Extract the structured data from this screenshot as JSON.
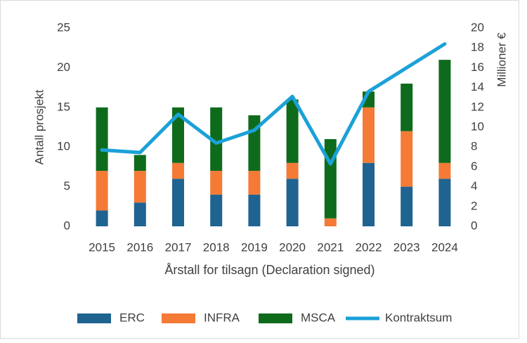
{
  "chart_data": {
    "type": "bar",
    "x_label": "Årstall for tilsagn (Declaration signed)",
    "y_label": "Antall prosjekt",
    "y2_label": "Millioner €",
    "categories": [
      "2015",
      "2016",
      "2017",
      "2018",
      "2019",
      "2020",
      "2021",
      "2022",
      "2023",
      "2024"
    ],
    "series": [
      {
        "name": "ERC",
        "color": "#1f6391",
        "values": [
          2,
          3,
          6,
          4,
          4,
          6,
          0,
          8,
          5,
          6
        ]
      },
      {
        "name": "INFRA",
        "color": "#f47a36",
        "values": [
          5,
          4,
          2,
          3,
          3,
          2,
          1,
          7,
          7,
          2
        ]
      },
      {
        "name": "MSCA",
        "color": "#0e6b1c",
        "values": [
          8,
          2,
          7,
          8,
          7,
          8,
          10,
          2,
          6,
          13
        ]
      },
      {
        "name": "Kontraktsum",
        "color": "#1ba1d8",
        "type": "line",
        "axis": "y2",
        "values": [
          7.7,
          7.45,
          11.3,
          8.4,
          9.7,
          13.1,
          6.3,
          13.6,
          16,
          18.4
        ]
      }
    ],
    "ylim": [
      0,
      25
    ],
    "yticks": [
      0,
      5,
      10,
      15,
      20,
      25
    ],
    "y2lim": [
      0,
      20
    ],
    "y2ticks": [
      0,
      2,
      4,
      6,
      8,
      10,
      12,
      14,
      16,
      18,
      20
    ],
    "stacked": true,
    "legend": "bottom"
  }
}
